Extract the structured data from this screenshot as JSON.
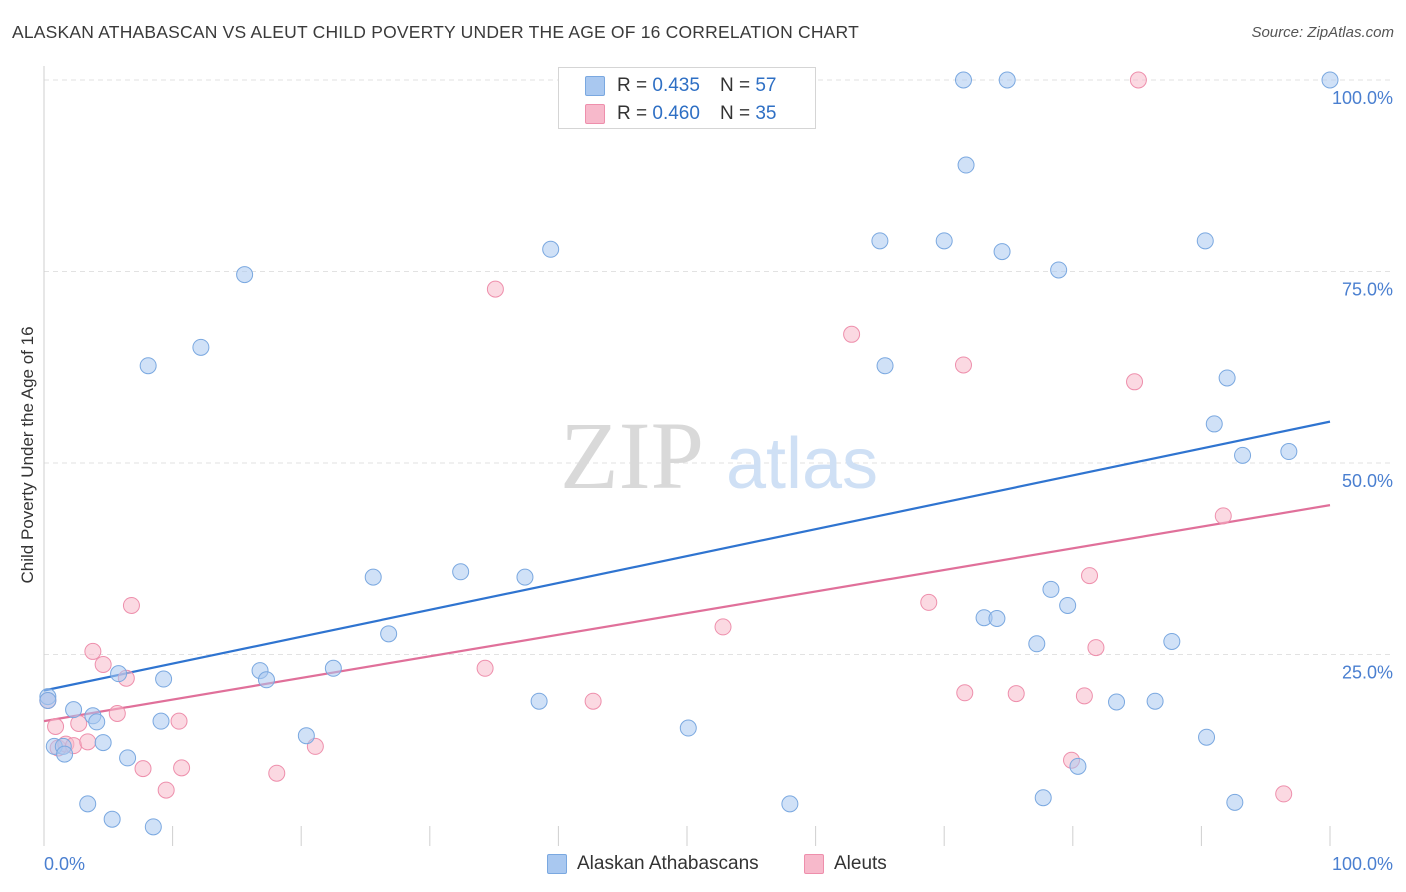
{
  "header": {
    "title": "ALASKAN ATHABASCAN VS ALEUT CHILD POVERTY UNDER THE AGE OF 16 CORRELATION CHART",
    "source": "Source: ZipAtlas.com"
  },
  "legend": {
    "series": [
      {
        "r_label": "R = ",
        "r_value": "0.435",
        "n_label": "N = ",
        "n_value": "57"
      },
      {
        "r_label": "R = ",
        "r_value": "0.460",
        "n_label": "N = ",
        "n_value": "35"
      }
    ]
  },
  "bottom_legend": {
    "blue_label": "Alaskan Athabascans",
    "pink_label": "Aleuts"
  },
  "watermark": {
    "zip": "ZIP",
    "atlas": "atlas"
  },
  "colors": {
    "blue_fill": "#a9c8f0",
    "blue_stroke": "#7aa8e0",
    "blue_line": "#2f74d0",
    "pink_fill": "#f7b9cb",
    "pink_stroke": "#ee8fac",
    "pink_line": "#e0709a",
    "tick_label": "#4a7fd0",
    "grid": "#e2e2e2"
  },
  "chart_data": {
    "type": "scatter",
    "title": "ALASKAN ATHABASCAN VS ALEUT CHILD POVERTY UNDER THE AGE OF 16 CORRELATION CHART",
    "xlabel": "",
    "ylabel": "Child Poverty Under the Age of 16",
    "xlim": [
      0,
      100
    ],
    "ylim": [
      0,
      100
    ],
    "x_tick_labels": [
      "0.0%",
      "100.0%"
    ],
    "y_tick_labels": [
      "25.0%",
      "50.0%",
      "75.0%",
      "100.0%"
    ],
    "y_ticks": [
      25,
      50,
      75,
      100
    ],
    "grid": true,
    "legend_position": "top-center",
    "series": [
      {
        "name": "Alaskan Athabascans",
        "r": 0.435,
        "n": 57,
        "trend": [
          [
            0,
            20.3
          ],
          [
            100,
            55.4
          ]
        ],
        "points": [
          [
            0.3,
            19.5
          ],
          [
            0.3,
            19.0
          ],
          [
            0.8,
            13.0
          ],
          [
            1.5,
            13.0
          ],
          [
            1.6,
            12.0
          ],
          [
            2.3,
            17.8
          ],
          [
            3.4,
            5.5
          ],
          [
            3.8,
            17.0
          ],
          [
            4.1,
            16.2
          ],
          [
            4.6,
            13.5
          ],
          [
            5.3,
            3.5
          ],
          [
            5.8,
            22.5
          ],
          [
            6.5,
            11.5
          ],
          [
            8.1,
            62.7
          ],
          [
            8.5,
            2.5
          ],
          [
            9.1,
            16.3
          ],
          [
            9.3,
            21.8
          ],
          [
            12.2,
            65.1
          ],
          [
            15.6,
            74.6
          ],
          [
            16.8,
            22.9
          ],
          [
            17.3,
            21.7
          ],
          [
            20.4,
            14.4
          ],
          [
            22.5,
            23.2
          ],
          [
            25.6,
            35.1
          ],
          [
            26.8,
            27.7
          ],
          [
            32.4,
            35.8
          ],
          [
            37.4,
            35.1
          ],
          [
            38.5,
            18.9
          ],
          [
            39.4,
            77.9
          ],
          [
            50.1,
            15.4
          ],
          [
            58.0,
            5.5
          ],
          [
            65.0,
            79.0
          ],
          [
            65.4,
            62.7
          ],
          [
            70.0,
            79.0
          ],
          [
            71.5,
            100.0
          ],
          [
            71.7,
            88.9
          ],
          [
            73.1,
            29.8
          ],
          [
            74.1,
            29.7
          ],
          [
            74.5,
            77.6
          ],
          [
            74.9,
            100.0
          ],
          [
            77.2,
            26.4
          ],
          [
            77.7,
            6.3
          ],
          [
            78.3,
            33.5
          ],
          [
            78.9,
            75.2
          ],
          [
            79.6,
            31.4
          ],
          [
            80.4,
            10.4
          ],
          [
            83.4,
            18.8
          ],
          [
            86.4,
            18.9
          ],
          [
            87.7,
            26.7
          ],
          [
            90.3,
            79.0
          ],
          [
            90.4,
            14.2
          ],
          [
            91.0,
            55.1
          ],
          [
            92.0,
            61.1
          ],
          [
            92.6,
            5.7
          ],
          [
            93.2,
            51.0
          ],
          [
            96.8,
            51.5
          ],
          [
            100.0,
            100.0
          ]
        ]
      },
      {
        "name": "Aleuts",
        "r": 0.46,
        "n": 35,
        "trend": [
          [
            0,
            16.3
          ],
          [
            100,
            44.5
          ]
        ],
        "points": [
          [
            0.3,
            19.0
          ],
          [
            0.9,
            15.6
          ],
          [
            1.1,
            12.8
          ],
          [
            1.7,
            13.3
          ],
          [
            2.3,
            13.1
          ],
          [
            2.7,
            16.0
          ],
          [
            3.4,
            13.6
          ],
          [
            3.8,
            25.4
          ],
          [
            4.6,
            23.7
          ],
          [
            5.7,
            17.3
          ],
          [
            6.4,
            21.9
          ],
          [
            6.8,
            31.4
          ],
          [
            7.7,
            10.1
          ],
          [
            9.5,
            7.3
          ],
          [
            10.5,
            16.3
          ],
          [
            10.7,
            10.2
          ],
          [
            18.1,
            9.5
          ],
          [
            21.1,
            13.0
          ],
          [
            34.3,
            23.2
          ],
          [
            35.1,
            72.7
          ],
          [
            42.7,
            18.9
          ],
          [
            52.8,
            28.6
          ],
          [
            62.8,
            66.8
          ],
          [
            68.8,
            31.8
          ],
          [
            71.5,
            62.8
          ],
          [
            71.6,
            20.0
          ],
          [
            75.6,
            19.9
          ],
          [
            79.9,
            11.2
          ],
          [
            80.9,
            19.6
          ],
          [
            81.3,
            35.3
          ],
          [
            81.8,
            25.9
          ],
          [
            84.8,
            60.6
          ],
          [
            85.1,
            100.0
          ],
          [
            91.7,
            43.1
          ],
          [
            96.4,
            6.8
          ]
        ]
      }
    ]
  }
}
